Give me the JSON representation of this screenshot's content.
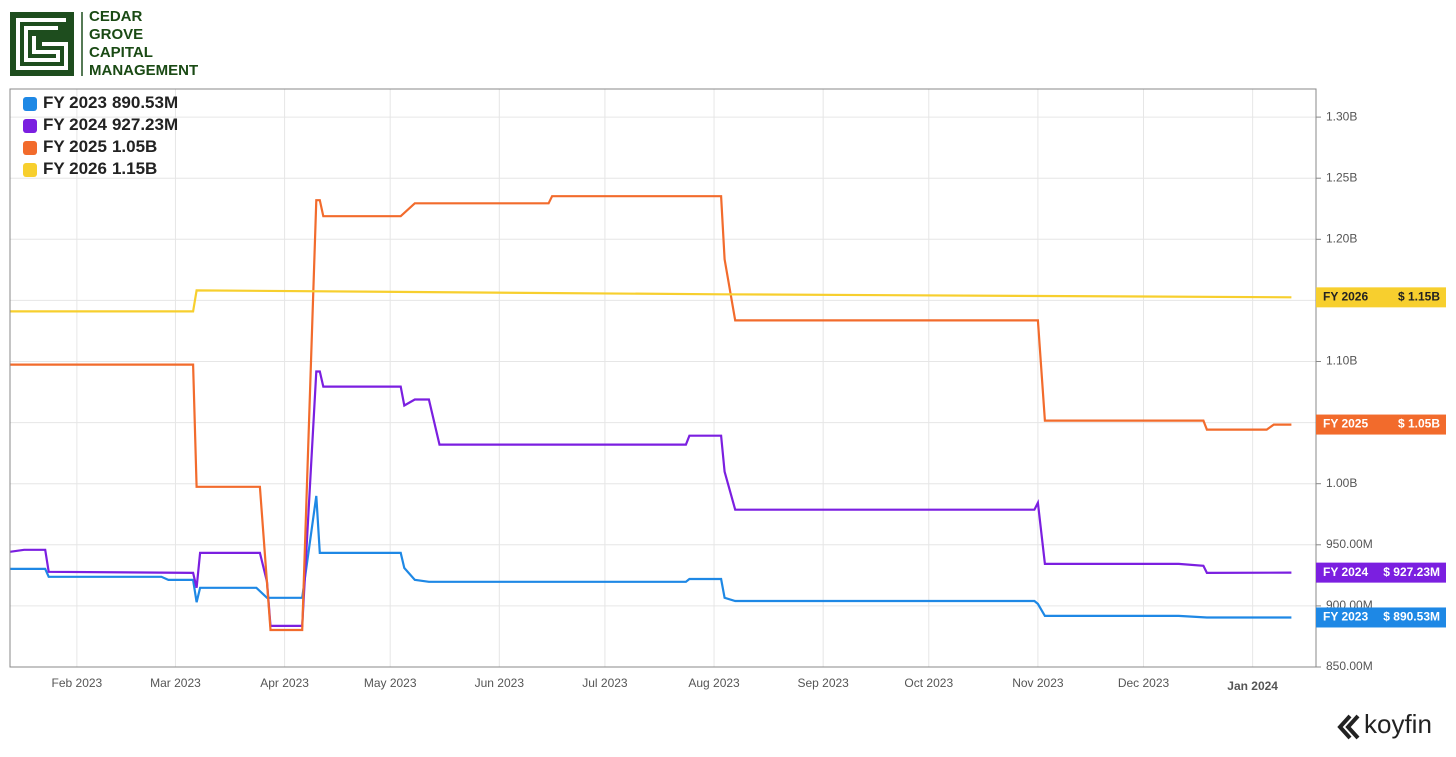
{
  "logo": {
    "lines": [
      "CEDAR",
      "GROVE",
      "CAPITAL",
      "MANAGEMENT"
    ]
  },
  "watermark": "koyfin",
  "chart_data": {
    "type": "line",
    "xlim": [
      "2023-01-13",
      "2024-01-19"
    ],
    "xticks": [
      {
        "value": "2023-02-01",
        "label": "Feb 2023"
      },
      {
        "value": "2023-03-01",
        "label": "Mar 2023"
      },
      {
        "value": "2023-04-01",
        "label": "Apr 2023"
      },
      {
        "value": "2023-05-01",
        "label": "May 2023"
      },
      {
        "value": "2023-06-01",
        "label": "Jun 2023"
      },
      {
        "value": "2023-07-01",
        "label": "Jul 2023"
      },
      {
        "value": "2023-08-01",
        "label": "Aug 2023"
      },
      {
        "value": "2023-09-01",
        "label": "Sep 2023"
      },
      {
        "value": "2023-10-01",
        "label": "Oct 2023"
      },
      {
        "value": "2023-11-01",
        "label": "Nov 2023"
      },
      {
        "value": "2023-12-01",
        "label": "Dec 2023"
      },
      {
        "value": "2024-01-01",
        "label": "Jan 2024"
      }
    ],
    "ylim": [
      850,
      1323
    ],
    "yticks": [
      {
        "value": 850,
        "label": "850.00M"
      },
      {
        "value": 900,
        "label": "900.00M"
      },
      {
        "value": 950,
        "label": "950.00M"
      },
      {
        "value": 1000,
        "label": "1.00B"
      },
      {
        "value": 1050,
        "label": "1.05B"
      },
      {
        "value": 1100,
        "label": "1.10B"
      },
      {
        "value": 1150,
        "label": "1.15B"
      },
      {
        "value": 1200,
        "label": "1.20B"
      },
      {
        "value": 1250,
        "label": "1.25B"
      },
      {
        "value": 1300,
        "label": "1.30B"
      }
    ],
    "grid": true,
    "legend": "upper left",
    "series": [
      {
        "name": "FY 2023",
        "legend_label": "890.53M",
        "tag_label": "$ 890.53M",
        "color": "#1e88e5",
        "x": [
          "2023-01-13",
          "2023-01-23",
          "2023-01-24",
          "2023-02-25",
          "2023-02-27",
          "2023-03-06",
          "2023-03-07",
          "2023-03-08",
          "2023-03-24",
          "2023-03-27",
          "2023-04-06",
          "2023-04-10",
          "2023-04-11",
          "2023-05-04",
          "2023-05-05",
          "2023-05-08",
          "2023-05-12",
          "2023-07-24",
          "2023-07-25",
          "2023-08-03",
          "2023-08-04",
          "2023-08-07",
          "2023-10-31",
          "2023-11-01",
          "2023-11-03",
          "2023-12-11",
          "2023-12-19",
          "2024-01-12"
        ],
        "values": [
          930.3,
          930.3,
          923.8,
          923.8,
          921.3,
          921.3,
          903.0,
          914.8,
          914.8,
          906.6,
          906.6,
          990.0,
          943.4,
          943.4,
          931.0,
          921.3,
          919.7,
          919.7,
          922.0,
          922.0,
          906.6,
          904.0,
          904.0,
          901.6,
          891.8,
          891.8,
          890.5,
          890.53
        ]
      },
      {
        "name": "FY 2024",
        "legend_label": "927.23M",
        "tag_label": "$ 927.23M",
        "color": "#7b1fe0",
        "x": [
          "2023-01-13",
          "2023-01-17",
          "2023-01-23",
          "2023-01-24",
          "2023-03-06",
          "2023-03-07",
          "2023-03-08",
          "2023-03-25",
          "2023-03-27",
          "2023-03-28",
          "2023-04-06",
          "2023-04-10",
          "2023-04-11",
          "2023-04-12",
          "2023-05-04",
          "2023-05-05",
          "2023-05-08",
          "2023-05-12",
          "2023-05-15",
          "2023-07-24",
          "2023-07-25",
          "2023-08-03",
          "2023-08-04",
          "2023-08-07",
          "2023-10-31",
          "2023-11-01",
          "2023-11-03",
          "2023-12-11",
          "2023-12-18",
          "2023-12-19",
          "2024-01-12"
        ],
        "values": [
          944.3,
          945.9,
          945.9,
          927.9,
          927.0,
          914.8,
          943.4,
          943.4,
          919.7,
          883.6,
          883.6,
          1091.8,
          1091.8,
          1079.5,
          1079.5,
          1064.0,
          1068.9,
          1068.9,
          1032.0,
          1032.0,
          1039.3,
          1039.3,
          1009.8,
          978.7,
          978.7,
          984.4,
          934.4,
          934.4,
          932.8,
          927.0,
          927.23
        ]
      },
      {
        "name": "FY 2025",
        "legend_label": "1.05B",
        "tag_label": "$ 1.05B",
        "color": "#f26b2c",
        "x": [
          "2023-01-13",
          "2023-03-06",
          "2023-03-07",
          "2023-03-25",
          "2023-03-28",
          "2023-04-06",
          "2023-04-10",
          "2023-04-11",
          "2023-04-12",
          "2023-05-04",
          "2023-05-08",
          "2023-06-15",
          "2023-06-16",
          "2023-08-03",
          "2023-08-04",
          "2023-08-07",
          "2023-11-01",
          "2023-11-03",
          "2023-12-18",
          "2023-12-19",
          "2024-01-05",
          "2024-01-07",
          "2024-01-12"
        ],
        "values": [
          1097.5,
          1097.5,
          997.5,
          997.5,
          880.3,
          880.3,
          1232.0,
          1232.0,
          1218.9,
          1218.9,
          1229.5,
          1229.5,
          1235.3,
          1235.3,
          1183.6,
          1133.6,
          1133.6,
          1051.6,
          1051.6,
          1044.3,
          1044.3,
          1048.4,
          1048.4
        ]
      },
      {
        "name": "FY 2026",
        "legend_label": "1.15B",
        "tag_label": "$ 1.15B",
        "color": "#f7cf2e",
        "x": [
          "2023-01-13",
          "2023-03-06",
          "2023-03-07",
          "2023-08-03",
          "2024-01-12"
        ],
        "values": [
          1141.0,
          1141.0,
          1158.2,
          1155.0,
          1152.5
        ]
      }
    ]
  }
}
